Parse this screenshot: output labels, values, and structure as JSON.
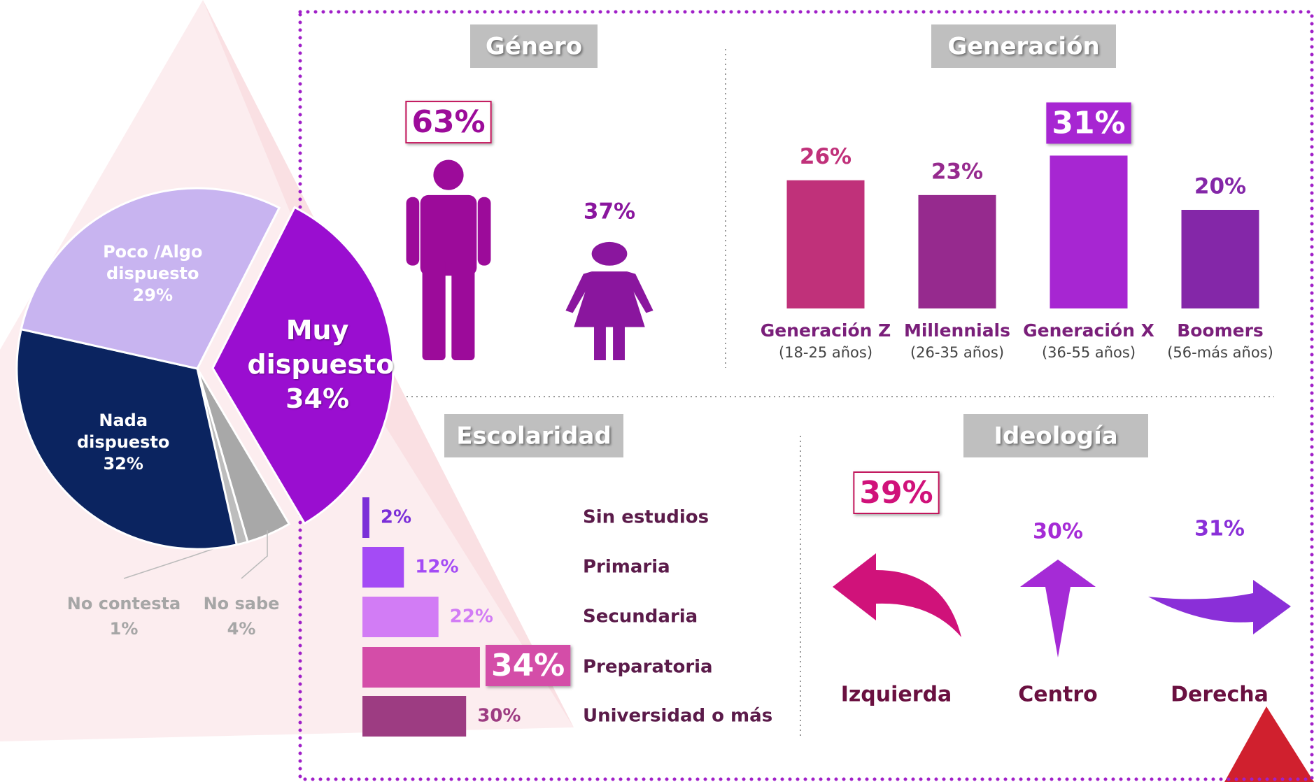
{
  "chart_data": [
    {
      "type": "pie",
      "categories": [
        "Muy dispuesto",
        "No sabe",
        "No contesta",
        "Nada dispuesto",
        "Poco /Algo dispuesto"
      ],
      "values": [
        34,
        4,
        1,
        32,
        29
      ],
      "value_labels": [
        "34%",
        "4%",
        "1%",
        "32%",
        "29%"
      ],
      "colors": [
        "#9a0ed0",
        "#a8a8a8",
        "#bdbdbd",
        "#0b2460",
        "#c8b4f0"
      ]
    },
    {
      "type": "pictogram",
      "title": "Género",
      "values": [
        63,
        37
      ],
      "value_labels": [
        "63%",
        "37%"
      ],
      "colors": [
        "#9c0b9a",
        "#8a169e"
      ]
    },
    {
      "type": "bar",
      "title": "Generación",
      "categories": [
        "Generación Z",
        "Millennials",
        "Generación X",
        "Boomers"
      ],
      "category_notes": [
        "(18-25 años)",
        "(26-35 años)",
        "(36-55 años)",
        "(56-más años)"
      ],
      "values": [
        26,
        23,
        31,
        20
      ],
      "value_labels": [
        "26%",
        "23%",
        "31%",
        "20%"
      ],
      "colors": [
        "#c0317a",
        "#962a8e",
        "#a726d2",
        "#8427a8"
      ]
    },
    {
      "type": "hbar",
      "title": "Escolaridad",
      "categories": [
        "Sin estudios",
        "Primaria",
        "Secundaria",
        "Preparatoria",
        "Universidad o más"
      ],
      "values": [
        2,
        12,
        22,
        34,
        30
      ],
      "value_labels": [
        "2%",
        "12%",
        "22%",
        "34%",
        "30%"
      ],
      "colors": [
        "#7b2fd8",
        "#a44bf5",
        "#d27cf5",
        "#d44da8",
        "#9d3c82"
      ]
    },
    {
      "type": "arrows",
      "title": "Ideología",
      "categories": [
        "Izquierda",
        "Centro",
        "Derecha"
      ],
      "values": [
        39,
        30,
        31
      ],
      "value_labels": [
        "39%",
        "30%",
        "31%"
      ],
      "colors": [
        "#d0127a",
        "#a52bd6",
        "#8a2fd8"
      ]
    }
  ]
}
